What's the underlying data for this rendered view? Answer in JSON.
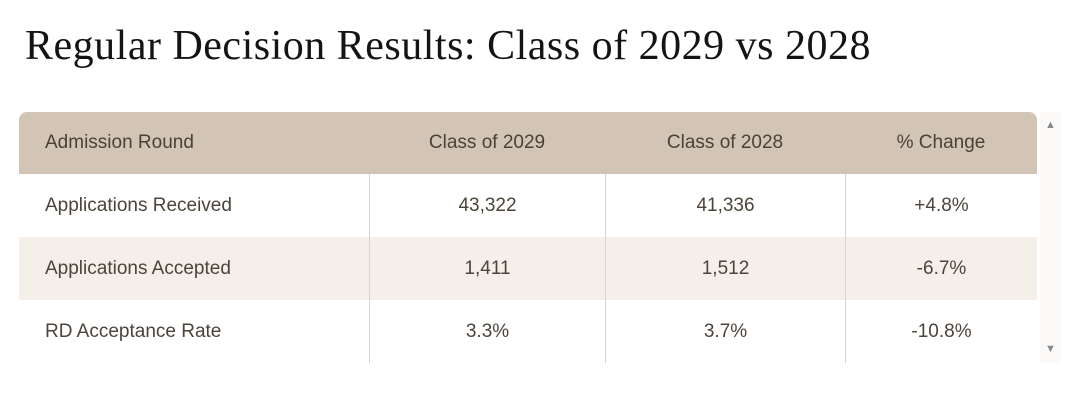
{
  "title": "Regular Decision Results: Class of 2029 vs 2028",
  "table": {
    "columns": [
      "Admission Round",
      "Class of 2029",
      "Class of 2028",
      "% Change"
    ],
    "rows": [
      [
        "Applications Received",
        "43,322",
        "41,336",
        "+4.8%"
      ],
      [
        "Applications Accepted",
        "1,411",
        "1,512",
        "-6.7%"
      ],
      [
        "RD Acceptance Rate",
        "3.3%",
        "3.7%",
        "-10.8%"
      ]
    ]
  },
  "scrollbar": {
    "up_icon": "▲",
    "down_icon": "▼"
  },
  "colors": {
    "header_bg": "#d2c5b5",
    "header_text": "#4a4238",
    "row_alt_bg": "#f4efe9",
    "cell_text": "#4c443b",
    "divider": "#dcd2c6",
    "scroll_arrow": "#8a8a8a",
    "scroll_track": "#fbfaf9",
    "title_text": "#141414"
  }
}
